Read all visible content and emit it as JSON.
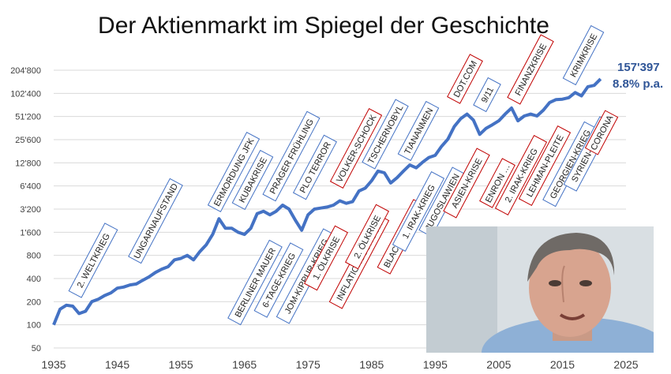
{
  "page": {
    "title": "Der Aktienmarkt im Spiegel der Geschichte"
  },
  "chart_data": {
    "type": "line",
    "title": "Der Aktienmarkt im Spiegel der Geschichte",
    "xlabel": "",
    "ylabel": "",
    "yscale": "log2",
    "xlim": [
      1935,
      2025
    ],
    "ylim": [
      50,
      204800
    ],
    "x_ticks": [
      "1935",
      "1945",
      "1955",
      "1965",
      "1975",
      "1985",
      "1995",
      "2005",
      "2015",
      "2025"
    ],
    "y_ticks": [
      "50",
      "100",
      "200",
      "400",
      "800",
      "1'600",
      "3'200",
      "6'400",
      "12'800",
      "25'600",
      "51'200",
      "102'400",
      "204'800"
    ],
    "grid": "horizontal",
    "line_color": "#4472c4",
    "end_label": {
      "value": "157'397",
      "rate": "8.8% p.a.",
      "color": "#2f5597"
    },
    "series": [
      {
        "values": [
          [
            1935,
            100
          ],
          [
            1936,
            160
          ],
          [
            1937,
            180
          ],
          [
            1938,
            175
          ],
          [
            1939,
            140
          ],
          [
            1940,
            150
          ],
          [
            1941,
            200
          ],
          [
            1942,
            215
          ],
          [
            1943,
            240
          ],
          [
            1944,
            260
          ],
          [
            1945,
            300
          ],
          [
            1946,
            310
          ],
          [
            1947,
            330
          ],
          [
            1948,
            340
          ],
          [
            1949,
            380
          ],
          [
            1950,
            420
          ],
          [
            1951,
            480
          ],
          [
            1952,
            530
          ],
          [
            1953,
            570
          ],
          [
            1954,
            700
          ],
          [
            1955,
            730
          ],
          [
            1956,
            800
          ],
          [
            1957,
            700
          ],
          [
            1958,
            900
          ],
          [
            1959,
            1100
          ],
          [
            1960,
            1500
          ],
          [
            1961,
            2400
          ],
          [
            1962,
            1800
          ],
          [
            1963,
            1800
          ],
          [
            1964,
            1600
          ],
          [
            1965,
            1500
          ],
          [
            1966,
            1800
          ],
          [
            1967,
            2800
          ],
          [
            1968,
            3000
          ],
          [
            1969,
            2700
          ],
          [
            1970,
            3000
          ],
          [
            1971,
            3600
          ],
          [
            1972,
            3200
          ],
          [
            1973,
            2300
          ],
          [
            1974,
            1700
          ],
          [
            1975,
            2700
          ],
          [
            1976,
            3200
          ],
          [
            1977,
            3300
          ],
          [
            1978,
            3400
          ],
          [
            1979,
            3600
          ],
          [
            1980,
            4100
          ],
          [
            1981,
            3800
          ],
          [
            1982,
            4000
          ],
          [
            1983,
            5500
          ],
          [
            1984,
            6000
          ],
          [
            1985,
            7500
          ],
          [
            1986,
            10000
          ],
          [
            1987,
            9500
          ],
          [
            1988,
            7000
          ],
          [
            1989,
            8200
          ],
          [
            1990,
            10000
          ],
          [
            1991,
            12000
          ],
          [
            1992,
            11000
          ],
          [
            1993,
            13000
          ],
          [
            1994,
            15000
          ],
          [
            1995,
            16000
          ],
          [
            1996,
            21000
          ],
          [
            1997,
            26000
          ],
          [
            1998,
            38000
          ],
          [
            1999,
            48000
          ],
          [
            2000,
            55000
          ],
          [
            2001,
            46000
          ],
          [
            2002,
            30000
          ],
          [
            2003,
            36000
          ],
          [
            2004,
            40000
          ],
          [
            2005,
            45000
          ],
          [
            2006,
            55000
          ],
          [
            2007,
            66000
          ],
          [
            2008,
            45000
          ],
          [
            2009,
            52000
          ],
          [
            2010,
            55000
          ],
          [
            2011,
            52000
          ],
          [
            2012,
            62000
          ],
          [
            2013,
            78000
          ],
          [
            2014,
            85000
          ],
          [
            2015,
            86000
          ],
          [
            2016,
            90000
          ],
          [
            2017,
            105000
          ],
          [
            2018,
            95000
          ],
          [
            2019,
            125000
          ],
          [
            2020,
            130000
          ],
          [
            2021,
            157397
          ]
        ]
      }
    ],
    "annotations": [
      {
        "text": "2. WELTKRIEG",
        "year": 1939,
        "color": "blue"
      },
      {
        "text": "UNGARNAUFSTAND",
        "year": 1951,
        "color": "blue"
      },
      {
        "text": "ERMORDUNG JFK",
        "year": 1961,
        "color": "blue"
      },
      {
        "text": "BERLINER MAUER",
        "year": 1962,
        "color": "blue"
      },
      {
        "text": "KUBAKRISE",
        "year": 1963,
        "color": "blue"
      },
      {
        "text": "6-TAGE-KRIEG",
        "year": 1967,
        "color": "blue"
      },
      {
        "text": "PRAGER FRÜHLING",
        "year": 1968,
        "color": "blue"
      },
      {
        "text": "JOM-KIPPUR-KRIEG",
        "year": 1973,
        "color": "blue"
      },
      {
        "text": "PLO TERROR",
        "year": 1972,
        "color": "blue"
      },
      {
        "text": "1. ÖLKRISE",
        "year": 1974,
        "color": "red"
      },
      {
        "text": "INFLATIONSSCHOCK",
        "year": 1977,
        "color": "red"
      },
      {
        "text": "2. ÖLKRISE",
        "year": 1980,
        "color": "red"
      },
      {
        "text": "VOLKER-SCHOCK",
        "year": 1981,
        "color": "red"
      },
      {
        "text": "BLACK MONDAY",
        "year": 1987,
        "color": "red"
      },
      {
        "text": "TSCHERNOBYL",
        "year": 1986,
        "color": "blue"
      },
      {
        "text": "TIANANMEN",
        "year": 1989,
        "color": "blue"
      },
      {
        "text": "1. IRAK-KRIEG",
        "year": 1990,
        "color": "blue"
      },
      {
        "text": "JUGOSLAWIEN",
        "year": 1992,
        "color": "blue"
      },
      {
        "text": "DOT.COM",
        "year": 2000,
        "color": "red"
      },
      {
        "text": "ASIEN-KRISE",
        "year": 1997,
        "color": "red"
      },
      {
        "text": "9/11",
        "year": 2001,
        "color": "blue"
      },
      {
        "text": "ENRON …",
        "year": 2001,
        "color": "red"
      },
      {
        "text": "2. IRAK-KRIEG",
        "year": 2003,
        "color": "red"
      },
      {
        "text": "FINANZKRISE",
        "year": 2008,
        "color": "red"
      },
      {
        "text": "LEHMAN-PLEITE",
        "year": 2008,
        "color": "red"
      },
      {
        "text": "GEORGIEN-KRIEG",
        "year": 2008,
        "color": "blue"
      },
      {
        "text": "SYRIEN-KRIEG",
        "year": 2011,
        "color": "blue"
      },
      {
        "text": "KRIMKRISE",
        "year": 2014,
        "color": "blue"
      },
      {
        "text": "CORONA",
        "year": 2020,
        "color": "red"
      }
    ]
  }
}
